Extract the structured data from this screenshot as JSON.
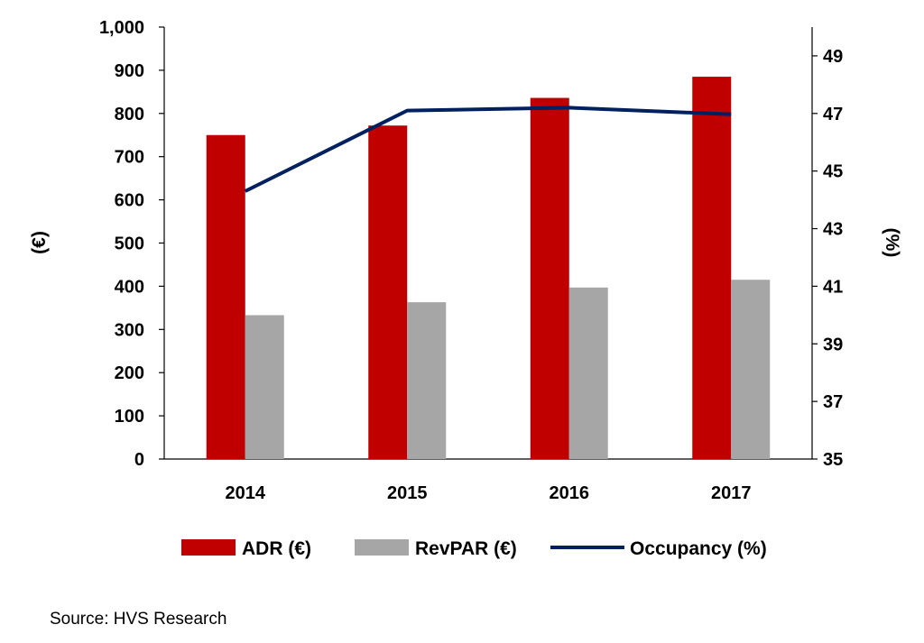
{
  "chart_data": {
    "type": "bar",
    "categories": [
      "2014",
      "2015",
      "2016",
      "2017"
    ],
    "series": [
      {
        "name": "ADR (€)",
        "kind": "bar",
        "axis": "left",
        "color": "#C00000",
        "values": [
          750,
          772,
          836,
          885
        ]
      },
      {
        "name": "RevPAR (€)",
        "kind": "bar",
        "axis": "left",
        "color": "#A6A6A6",
        "values": [
          333,
          363,
          397,
          415
        ]
      },
      {
        "name": "Occupancy (%)",
        "kind": "line",
        "axis": "right",
        "color": "#002060",
        "values": [
          44.3,
          47.1,
          47.2,
          46.97
        ]
      }
    ],
    "ylabel_left": "(€)",
    "ylabel_right": "(%)",
    "ylim_left": [
      0,
      1000
    ],
    "yticks_left": [
      0,
      100,
      200,
      300,
      400,
      500,
      600,
      700,
      800,
      900,
      1000
    ],
    "ytick_labels_left": [
      "0",
      "100",
      "200",
      "300",
      "400",
      "500",
      "600",
      "700",
      "800",
      "900",
      "1,000"
    ],
    "ylim_right": [
      35,
      50
    ],
    "yticks_right": [
      35,
      37,
      39,
      41,
      43,
      45,
      47,
      49
    ],
    "ytick_labels_right": [
      "35",
      "37",
      "39",
      "41",
      "43",
      "45",
      "47",
      "49"
    ],
    "grid": false,
    "legend_position": "bottom"
  },
  "source": "Source: HVS Research"
}
